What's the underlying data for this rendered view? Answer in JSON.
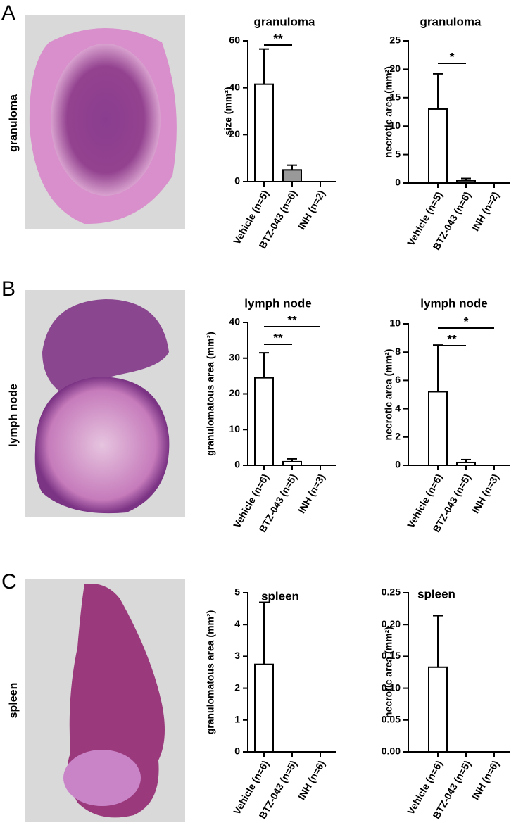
{
  "panels": [
    {
      "letter": "A",
      "label": "granuloma"
    },
    {
      "letter": "B",
      "label": "lymph node"
    },
    {
      "letter": "C",
      "label": "spleen"
    }
  ],
  "chart_data": [
    {
      "type": "bar",
      "title": "granuloma",
      "ylabel": "size (mm²)",
      "categories": [
        "Vehicle (n=5)",
        "BTZ-043 (n=6)",
        "INH (n=2)"
      ],
      "values": [
        41.5,
        5,
        0
      ],
      "errors": [
        15,
        2,
        0
      ],
      "colors": [
        "#ffffff",
        "#999999",
        "#ffffff"
      ],
      "ylim": [
        0,
        60
      ],
      "yticks": [
        0,
        20,
        40,
        60
      ],
      "significance": [
        {
          "text": "**",
          "between": [
            0,
            1
          ]
        }
      ]
    },
    {
      "type": "bar",
      "title": "granuloma",
      "ylabel": "necrotic area (mm²)",
      "categories": [
        "Vehicle (n=5)",
        "BTZ-043 (n=6)",
        "INH (n=2)"
      ],
      "values": [
        13,
        0.4,
        0
      ],
      "errors": [
        6.2,
        0.4,
        0
      ],
      "colors": [
        "#ffffff",
        "#ffffff",
        "#ffffff"
      ],
      "ylim": [
        0,
        25
      ],
      "yticks": [
        0,
        5,
        10,
        15,
        20,
        25
      ],
      "significance": [
        {
          "text": "*",
          "between": [
            0,
            1
          ]
        }
      ]
    },
    {
      "type": "bar",
      "title": "lymph node",
      "ylabel": "granulomatous area (mm²)",
      "categories": [
        "Vehicle (n=6)",
        "BTZ-043 (n=5)",
        "INH (n=3)"
      ],
      "values": [
        24.5,
        1,
        0
      ],
      "errors": [
        7,
        0.8,
        0
      ],
      "colors": [
        "#ffffff",
        "#ffffff",
        "#ffffff"
      ],
      "ylim": [
        0,
        40
      ],
      "yticks": [
        0,
        10,
        20,
        30,
        40
      ],
      "significance": [
        {
          "text": "**",
          "between": [
            0,
            2
          ]
        },
        {
          "text": "**",
          "between": [
            0,
            1
          ]
        }
      ]
    },
    {
      "type": "bar",
      "title": "lymph node",
      "ylabel": "necrotic area (mm²)",
      "categories": [
        "Vehicle (n=6)",
        "BTZ-043 (n=5)",
        "INH (n=3)"
      ],
      "values": [
        5.2,
        0.2,
        0
      ],
      "errors": [
        3.3,
        0.2,
        0
      ],
      "colors": [
        "#ffffff",
        "#ffffff",
        "#ffffff"
      ],
      "ylim": [
        0,
        10
      ],
      "yticks": [
        0,
        2,
        4,
        6,
        8,
        10
      ],
      "significance": [
        {
          "text": "*",
          "between": [
            0,
            2
          ]
        },
        {
          "text": "**",
          "between": [
            0,
            1
          ]
        }
      ]
    },
    {
      "type": "bar",
      "title": "spleen",
      "ylabel": "granulomatous area (mm²)",
      "categories": [
        "Vehicle (n=6)",
        "BTZ-043 (n=5)",
        "INH (n=6)"
      ],
      "values": [
        2.75,
        0,
        0
      ],
      "errors": [
        1.95,
        0,
        0
      ],
      "colors": [
        "#ffffff",
        "#ffffff",
        "#ffffff"
      ],
      "ylim": [
        0,
        5
      ],
      "yticks": [
        0,
        1,
        2,
        3,
        4,
        5
      ],
      "significance": []
    },
    {
      "type": "bar",
      "title": "spleen",
      "ylabel": "necrotic area (mm²)",
      "categories": [
        "Vehicle (n=6)",
        "BTZ-043 (n=5)",
        "INH (n=6)"
      ],
      "values": [
        0.133,
        0,
        0
      ],
      "errors": [
        0.081,
        0,
        0
      ],
      "colors": [
        "#ffffff",
        "#ffffff",
        "#ffffff"
      ],
      "ylim": [
        0,
        0.25
      ],
      "yticks": [
        {
          "value": 0,
          "label": "0.00"
        },
        {
          "value": 0.05,
          "label": "0.05"
        },
        {
          "value": 0.1,
          "label": "0.10"
        },
        {
          "value": 0.15,
          "label": "0.15"
        },
        {
          "value": 0.2,
          "label": "0.20"
        },
        {
          "value": 0.25,
          "label": "0.25"
        }
      ],
      "significance": []
    }
  ]
}
